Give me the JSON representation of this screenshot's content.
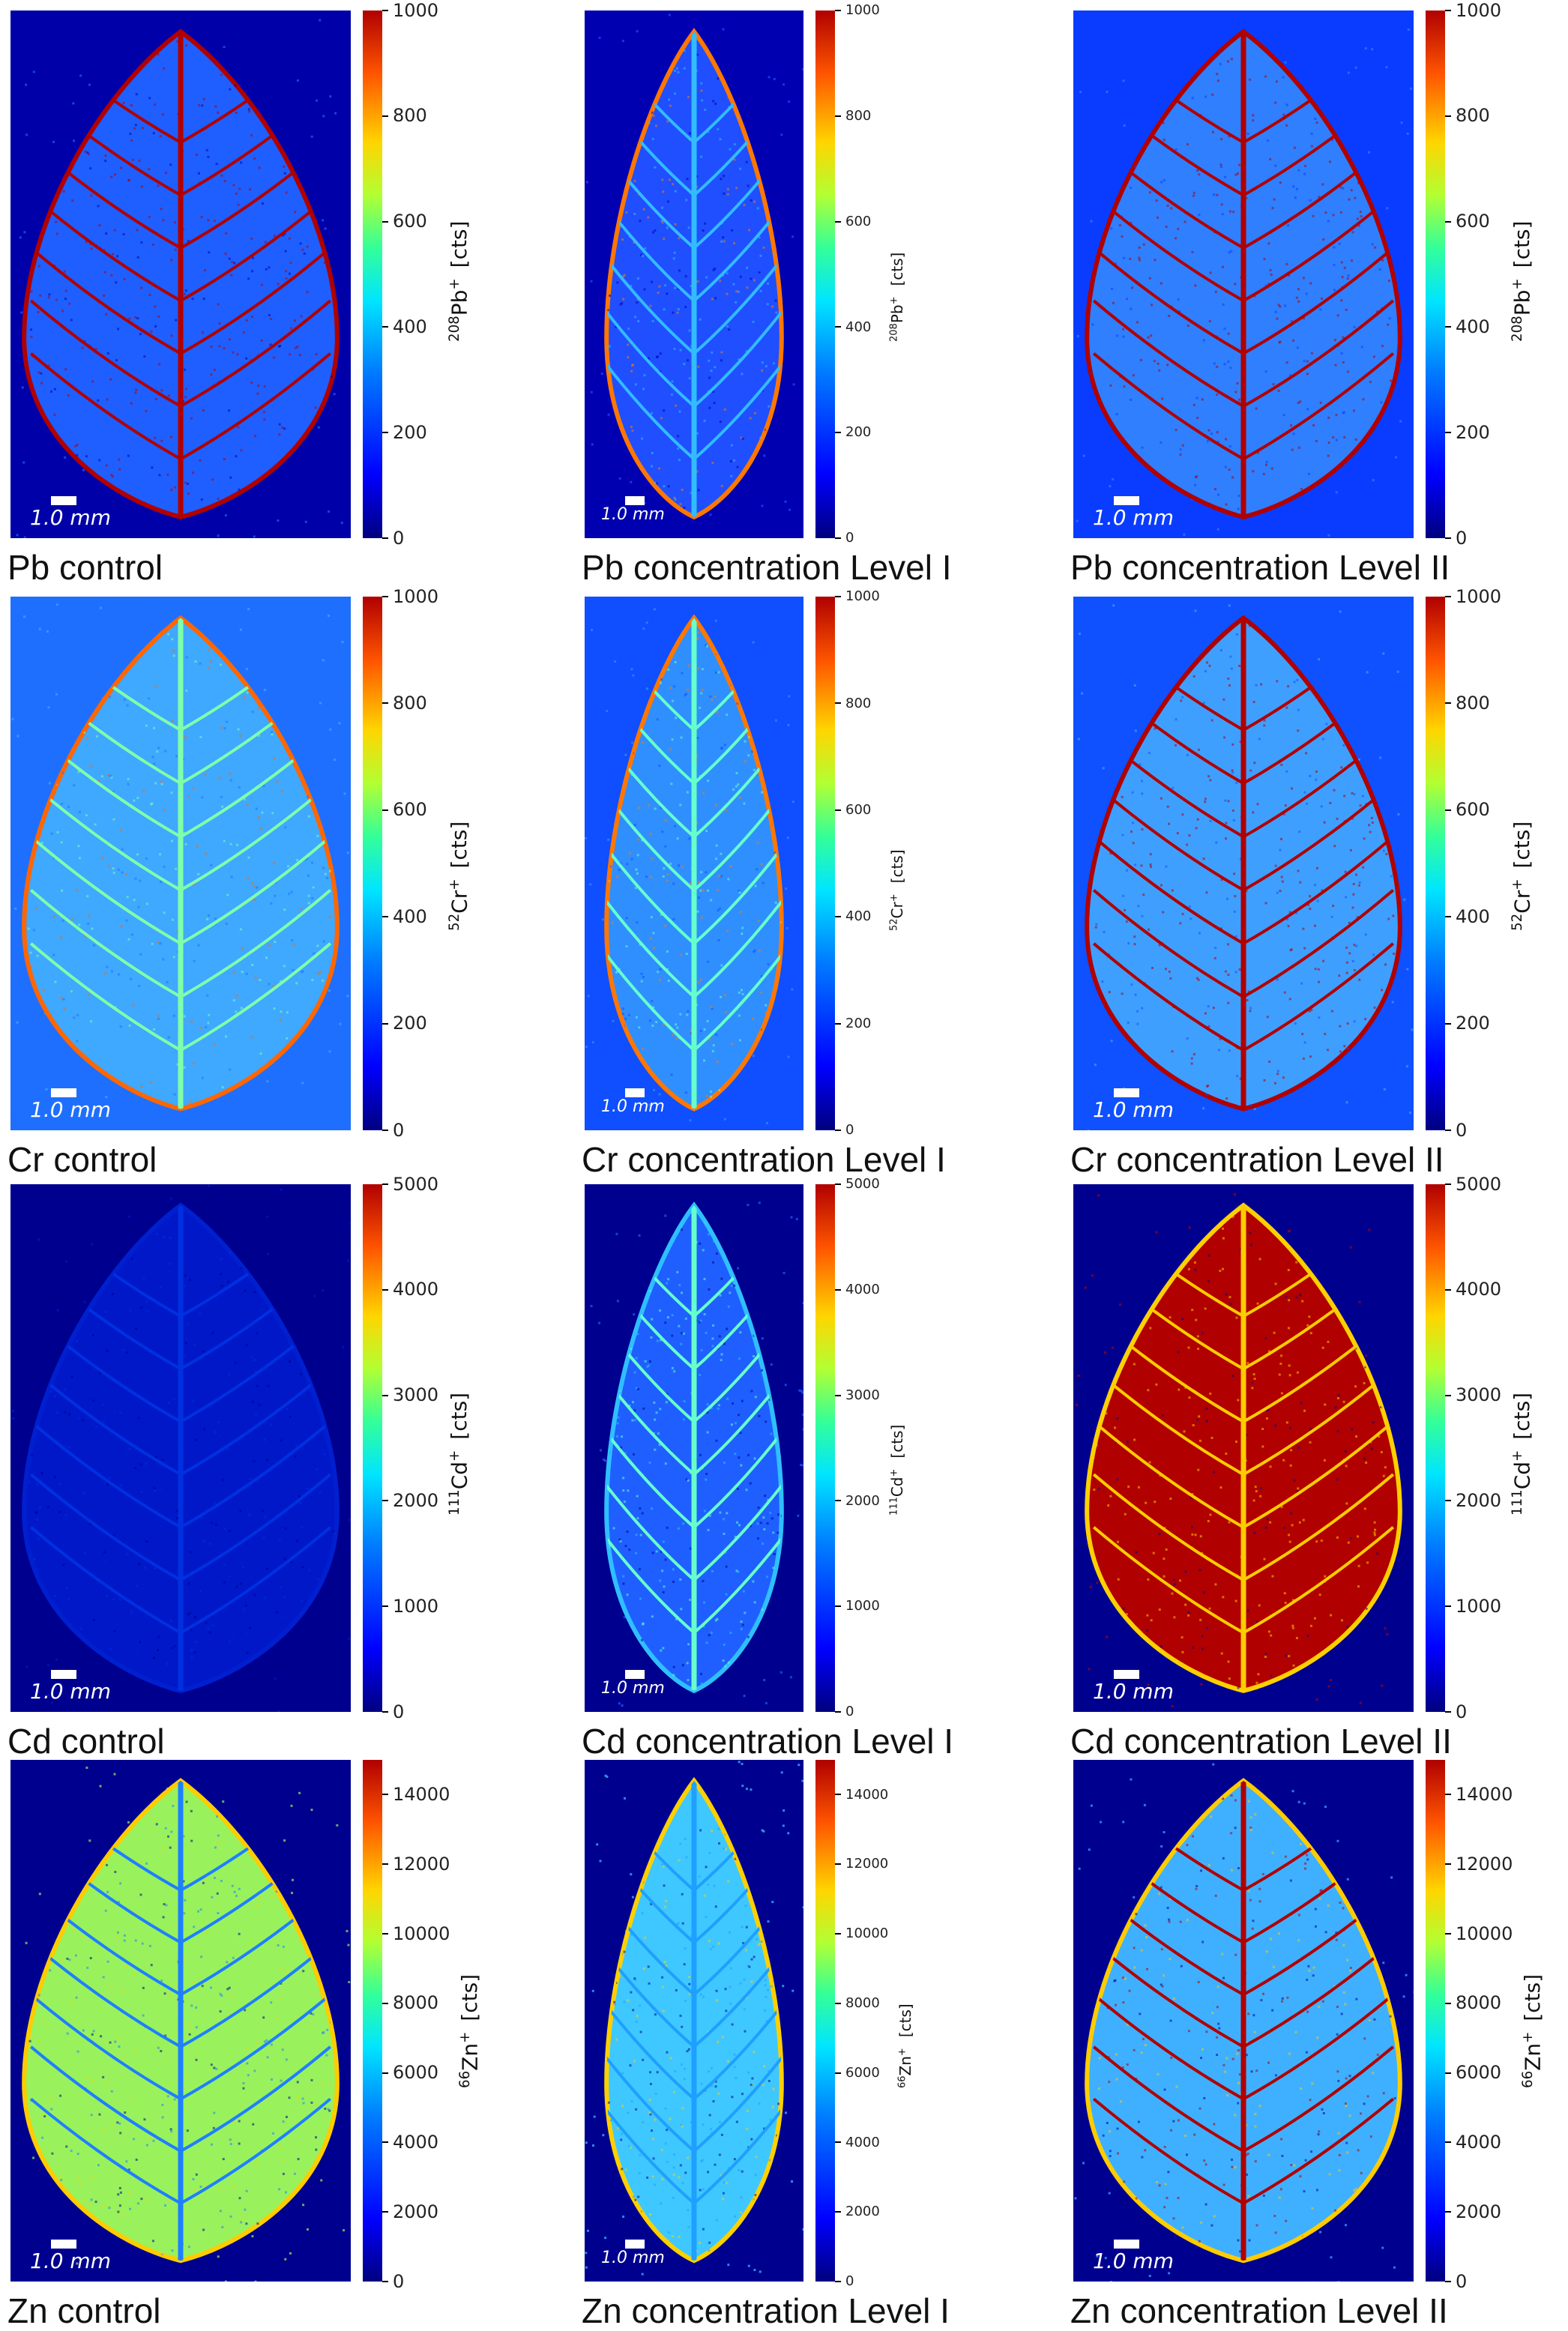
{
  "chart_data": [
    {
      "type": "heatmap",
      "title": "Pb control",
      "element": "Pb",
      "scale_bar": "1.0 mm",
      "colorbar": {
        "label_iso": "208",
        "label_sym": "Pb",
        "label_unit": "[cts]",
        "range": [
          0,
          1000
        ],
        "ticks": [
          "0",
          "200",
          "400",
          "600",
          "800",
          "1000"
        ]
      },
      "colors": {
        "background": "#0000a8",
        "body": "#1f5fff",
        "veins": "#b00000",
        "edge": "#b00000"
      }
    },
    {
      "type": "heatmap",
      "title": "Pb concentration Level I",
      "element": "Pb",
      "scale_bar": "1.0 mm",
      "colorbar": {
        "label_iso": "208",
        "label_sym": "Pb",
        "label_unit": "[cts]",
        "range": [
          0,
          1000
        ],
        "ticks": [
          "0",
          "200",
          "400",
          "600",
          "800",
          "1000"
        ]
      },
      "colors": {
        "background": "#0000b0",
        "body": "#1f4fff",
        "veins": "#33bbff",
        "edge": "#ff7700"
      }
    },
    {
      "type": "heatmap",
      "title": "Pb concentration Level II",
      "element": "Pb",
      "scale_bar": "1.0 mm",
      "colorbar": {
        "label_iso": "208",
        "label_sym": "Pb",
        "label_unit": "[cts]",
        "range": [
          0,
          1000
        ],
        "ticks": [
          "0",
          "200",
          "400",
          "600",
          "800",
          "1000"
        ]
      },
      "colors": {
        "background": "#0a3cff",
        "body": "#2f7fff",
        "veins": "#b00000",
        "edge": "#b00000"
      }
    },
    {
      "type": "heatmap",
      "title": "Cr control",
      "element": "Cr",
      "scale_bar": "1.0 mm",
      "colorbar": {
        "label_iso": "52",
        "label_sym": "Cr",
        "label_unit": "[cts]",
        "range": [
          0,
          1000
        ],
        "ticks": [
          "0",
          "200",
          "400",
          "600",
          "800",
          "1000"
        ]
      },
      "colors": {
        "background": "#1f6fff",
        "body": "#3fa8ff",
        "veins": "#7fffaa",
        "edge": "#ff6600"
      }
    },
    {
      "type": "heatmap",
      "title": "Cr concentration Level I",
      "element": "Cr",
      "scale_bar": "1.0 mm",
      "colorbar": {
        "label_iso": "52",
        "label_sym": "Cr",
        "label_unit": "[cts]",
        "range": [
          0,
          1000
        ],
        "ticks": [
          "0",
          "200",
          "400",
          "600",
          "800",
          "1000"
        ]
      },
      "colors": {
        "background": "#0f4fff",
        "body": "#2f8fff",
        "veins": "#66ffcc",
        "edge": "#ff7700"
      }
    },
    {
      "type": "heatmap",
      "title": "Cr concentration Level II",
      "element": "Cr",
      "scale_bar": "1.0 mm",
      "colorbar": {
        "label_iso": "52",
        "label_sym": "Cr",
        "label_unit": "[cts]",
        "range": [
          0,
          1000
        ],
        "ticks": [
          "0",
          "200",
          "400",
          "600",
          "800",
          "1000"
        ]
      },
      "colors": {
        "background": "#0f50ff",
        "body": "#3f9fff",
        "veins": "#b00000",
        "edge": "#b00000"
      }
    },
    {
      "type": "heatmap",
      "title": "Cd control",
      "element": "Cd",
      "scale_bar": "1.0 mm",
      "colorbar": {
        "label_iso": "111",
        "label_sym": "Cd",
        "label_unit": "[cts]",
        "range": [
          0,
          5000
        ],
        "ticks": [
          "0",
          "1000",
          "2000",
          "3000",
          "4000",
          "5000"
        ]
      },
      "colors": {
        "background": "#00008f",
        "body": "#0018c8",
        "veins": "#0030e0",
        "edge": "#0020d0"
      }
    },
    {
      "type": "heatmap",
      "title": "Cd concentration Level I",
      "element": "Cd",
      "scale_bar": "1.0 mm",
      "colorbar": {
        "label_iso": "111",
        "label_sym": "Cd",
        "label_unit": "[cts]",
        "range": [
          0,
          5000
        ],
        "ticks": [
          "0",
          "1000",
          "2000",
          "3000",
          "4000",
          "5000"
        ]
      },
      "colors": {
        "background": "#00008f",
        "body": "#1f5fff",
        "veins": "#66ffcc",
        "edge": "#2fbfff"
      }
    },
    {
      "type": "heatmap",
      "title": "Cd concentration Level II",
      "element": "Cd",
      "scale_bar": "1.0 mm",
      "colorbar": {
        "label_iso": "111",
        "label_sym": "Cd",
        "label_unit": "[cts]",
        "range": [
          0,
          5000
        ],
        "ticks": [
          "0",
          "1000",
          "2000",
          "3000",
          "4000",
          "5000"
        ]
      },
      "colors": {
        "background": "#00008f",
        "body": "#b00000",
        "veins": "#ffcc00",
        "edge": "#ffd000"
      }
    },
    {
      "type": "heatmap",
      "title": "Zn control",
      "element": "Zn",
      "scale_bar": "1.0 mm",
      "colorbar": {
        "label_iso": "66",
        "label_sym": "Zn",
        "label_unit": "[cts]",
        "range": [
          0,
          15000
        ],
        "ticks": [
          "0",
          "2000",
          "4000",
          "6000",
          "8000",
          "10000",
          "12000",
          "14000"
        ]
      },
      "colors": {
        "background": "#00008f",
        "body": "#99f25c",
        "veins": "#1f7fff",
        "edge": "#ffcc00"
      }
    },
    {
      "type": "heatmap",
      "title": "Zn concentration Level I",
      "element": "Zn",
      "scale_bar": "1.0 mm",
      "colorbar": {
        "label_iso": "66",
        "label_sym": "Zn",
        "label_unit": "[cts]",
        "range": [
          0,
          15000
        ],
        "ticks": [
          "0",
          "2000",
          "4000",
          "6000",
          "8000",
          "10000",
          "12000",
          "14000"
        ]
      },
      "colors": {
        "background": "#00008f",
        "body": "#3fc8ff",
        "veins": "#1f9fff",
        "edge": "#ffd000"
      }
    },
    {
      "type": "heatmap",
      "title": "Zn concentration Level II",
      "element": "Zn",
      "scale_bar": "1.0 mm",
      "colorbar": {
        "label_iso": "66",
        "label_sym": "Zn",
        "label_unit": "[cts]",
        "range": [
          0,
          15000
        ],
        "ticks": [
          "0",
          "2000",
          "4000",
          "6000",
          "8000",
          "10000",
          "12000",
          "14000"
        ]
      },
      "colors": {
        "background": "#00008f",
        "body": "#3fb0ff",
        "veins": "#b00000",
        "edge": "#ffcc00"
      }
    }
  ]
}
